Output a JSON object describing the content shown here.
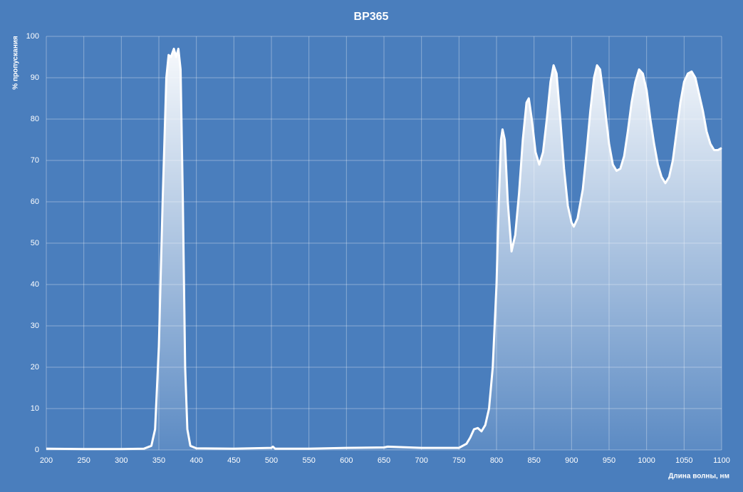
{
  "chart_data": {
    "type": "area",
    "title": "BP365",
    "ylabel": "% пропускания",
    "xlabel": "Длина волны, нм",
    "x": [
      200,
      250,
      300,
      330,
      340,
      345,
      350,
      355,
      360,
      363,
      366,
      370,
      373,
      376,
      379,
      382,
      385,
      388,
      392,
      400,
      450,
      500,
      502,
      505,
      550,
      600,
      650,
      655,
      700,
      750,
      760,
      765,
      770,
      775,
      780,
      785,
      790,
      795,
      800,
      803,
      806,
      808,
      811,
      815,
      820,
      825,
      830,
      835,
      840,
      843,
      847,
      852,
      857,
      862,
      867,
      872,
      876,
      880,
      885,
      890,
      895,
      900,
      903,
      908,
      915,
      920,
      925,
      930,
      934,
      938,
      943,
      950,
      955,
      960,
      965,
      970,
      975,
      980,
      985,
      990,
      995,
      1000,
      1005,
      1010,
      1015,
      1020,
      1025,
      1030,
      1035,
      1040,
      1045,
      1050,
      1055,
      1060,
      1065,
      1070,
      1075,
      1080,
      1085,
      1090,
      1095,
      1100
    ],
    "values": [
      0.3,
      0.2,
      0.2,
      0.3,
      1,
      5,
      25,
      60,
      90,
      95.5,
      95,
      97,
      95,
      97,
      92,
      60,
      20,
      5,
      1,
      0.4,
      0.3,
      0.5,
      0.8,
      0.3,
      0.3,
      0.5,
      0.6,
      0.8,
      0.5,
      0.5,
      1.5,
      3,
      5,
      5.3,
      4.5,
      6,
      10,
      20,
      40,
      60,
      75,
      77.5,
      75,
      60,
      48,
      52,
      62,
      75,
      84,
      85,
      80,
      72,
      69,
      72,
      80,
      89,
      93,
      91,
      80,
      68,
      59,
      55,
      54,
      56,
      63,
      72,
      82,
      90,
      93,
      92,
      85,
      74,
      69,
      67.5,
      68,
      71,
      77,
      84,
      89,
      92,
      91,
      87,
      80,
      74,
      69,
      66,
      64.5,
      66,
      70,
      77,
      84,
      89,
      91,
      91.5,
      90,
      86,
      82,
      77,
      74,
      72.5,
      72.5,
      73
    ],
    "color": "#ffffff",
    "xlim": [
      200,
      1100
    ],
    "ylim": [
      0,
      100
    ],
    "xticks": [
      200,
      250,
      300,
      350,
      400,
      450,
      500,
      550,
      600,
      650,
      700,
      750,
      800,
      850,
      900,
      950,
      1000,
      1050,
      1100
    ],
    "yticks": [
      0,
      10,
      20,
      30,
      40,
      50,
      60,
      70,
      80,
      90,
      100
    ],
    "grid": true
  }
}
